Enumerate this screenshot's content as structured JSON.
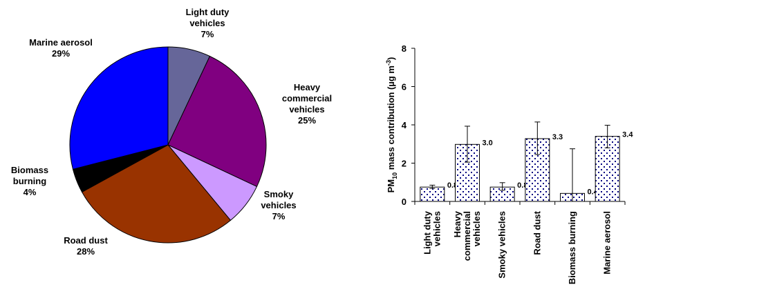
{
  "chart_data": [
    {
      "type": "pie",
      "slices": [
        {
          "label": [
            "Light duty",
            "vehicles"
          ],
          "pct_label": "7%",
          "value": 7,
          "color": "#666699"
        },
        {
          "label": [
            "Heavy",
            "commercial",
            "vehicles"
          ],
          "pct_label": "25%",
          "value": 25,
          "color": "#800080"
        },
        {
          "label": [
            "Smoky",
            "vehicles"
          ],
          "pct_label": "7%",
          "value": 7,
          "color": "#CC99FF"
        },
        {
          "label": [
            "Road dust"
          ],
          "pct_label": "28%",
          "value": 28,
          "color": "#993300"
        },
        {
          "label": [
            "Biomass",
            "burning"
          ],
          "pct_label": "4%",
          "value": 4,
          "color": "#000000"
        },
        {
          "label": [
            "Marine aerosol"
          ],
          "pct_label": "29%",
          "value": 29,
          "color": "#0000FF"
        }
      ]
    },
    {
      "type": "bar",
      "categories": [
        [
          "Light duty",
          "vehicles"
        ],
        [
          "Heavy",
          "commercial",
          "vehicles"
        ],
        [
          "Smoky vehicles"
        ],
        [
          "Road dust"
        ],
        [
          "Biomass burning"
        ],
        [
          "Marine aerosol"
        ]
      ],
      "values": [
        0.75,
        2.98,
        0.75,
        3.28,
        0.42,
        3.4
      ],
      "value_labels": [
        "0.8",
        "3.0",
        "0.8",
        "3.3",
        "0.4",
        "3.4"
      ],
      "error_low": [
        0.68,
        2.05,
        0.58,
        2.45,
        0.0,
        2.8
      ],
      "error_high": [
        0.85,
        3.93,
        0.98,
        4.15,
        2.75,
        3.98
      ],
      "ylabel": {
        "prefix": "PM",
        "sub": "10",
        "mid": " mass contribution (µg m",
        "sup": "-3",
        "suffix": ")"
      },
      "ylim": [
        0,
        8
      ],
      "yticks": [
        "0",
        "2",
        "4",
        "6",
        "8"
      ],
      "bar_pattern": "dotted",
      "dot_color": "#000080"
    }
  ]
}
